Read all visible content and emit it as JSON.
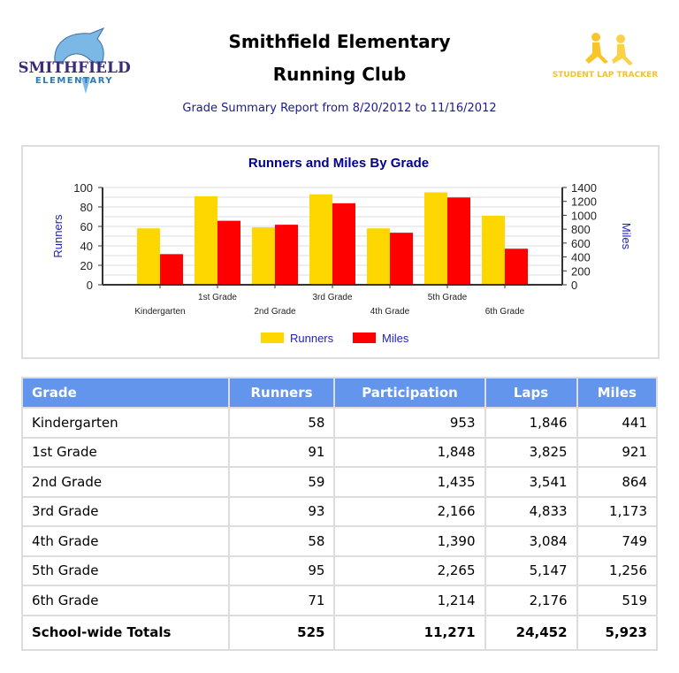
{
  "header": {
    "title_line1": "Smithfield Elementary",
    "title_line2": "Running Club",
    "subtitle": "Grade Summary Report from 8/20/2012 to 11/16/2012",
    "logo_left_text": "SMITHFIELD ELEMENTARY",
    "logo_right_text": "STUDENT LAP TRACKER"
  },
  "chart_data": {
    "type": "bar",
    "title": "Runners and Miles By Grade",
    "categories": [
      "Kindergarten",
      "1st Grade",
      "2nd Grade",
      "3rd Grade",
      "4th Grade",
      "5th Grade",
      "6th Grade"
    ],
    "series": [
      {
        "name": "Runners",
        "axis": "left",
        "color": "#ffd700",
        "values": [
          58,
          91,
          59,
          93,
          58,
          95,
          71
        ]
      },
      {
        "name": "Miles",
        "axis": "right",
        "color": "#ff0000",
        "values": [
          441,
          921,
          864,
          1173,
          749,
          1256,
          519
        ]
      }
    ],
    "ylabel": "Runners",
    "ylim": [
      0,
      100
    ],
    "yticks": [
      "0",
      "20",
      "40",
      "60",
      "80",
      "100"
    ],
    "y2label": "Miles",
    "y2lim": [
      0,
      1400
    ],
    "y2ticks": [
      "0",
      "200",
      "400",
      "600",
      "800",
      "1000",
      "1200",
      "1400"
    ],
    "legend": "bottom",
    "grid": true
  },
  "table": {
    "headers": [
      "Grade",
      "Runners",
      "Participation",
      "Laps",
      "Miles"
    ],
    "rows": [
      [
        "Kindergarten",
        "58",
        "953",
        "1,846",
        "441"
      ],
      [
        "1st Grade",
        "91",
        "1,848",
        "3,825",
        "921"
      ],
      [
        "2nd Grade",
        "59",
        "1,435",
        "3,541",
        "864"
      ],
      [
        "3rd Grade",
        "93",
        "2,166",
        "4,833",
        "1,173"
      ],
      [
        "4th Grade",
        "58",
        "1,390",
        "3,084",
        "749"
      ],
      [
        "5th Grade",
        "95",
        "2,265",
        "5,147",
        "1,256"
      ],
      [
        "6th Grade",
        "71",
        "1,214",
        "2,176",
        "519"
      ]
    ],
    "totals": [
      "School-wide Totals",
      "525",
      "11,271",
      "24,452",
      "5,923"
    ]
  }
}
